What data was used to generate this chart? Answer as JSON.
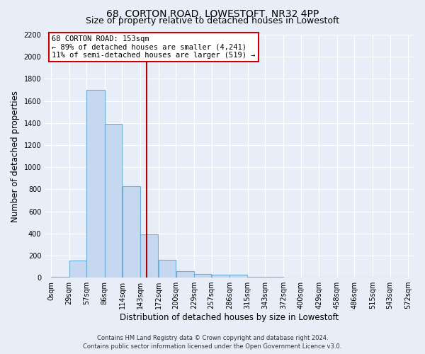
{
  "title": "68, CORTON ROAD, LOWESTOFT, NR32 4PP",
  "subtitle": "Size of property relative to detached houses in Lowestoft",
  "xlabel": "Distribution of detached houses by size in Lowestoft",
  "ylabel": "Number of detached properties",
  "bin_edges": [
    0,
    29,
    57,
    86,
    114,
    143,
    172,
    200,
    229,
    257,
    286,
    315,
    343,
    372,
    400,
    429,
    458,
    486,
    515,
    543,
    572
  ],
  "bin_labels": [
    "0sqm",
    "29sqm",
    "57sqm",
    "86sqm",
    "114sqm",
    "143sqm",
    "172sqm",
    "200sqm",
    "229sqm",
    "257sqm",
    "286sqm",
    "315sqm",
    "343sqm",
    "372sqm",
    "400sqm",
    "429sqm",
    "458sqm",
    "486sqm",
    "515sqm",
    "543sqm",
    "572sqm"
  ],
  "counts": [
    10,
    155,
    1700,
    1390,
    830,
    390,
    160,
    60,
    35,
    25,
    25,
    10,
    5,
    0,
    0,
    0,
    0,
    0,
    0,
    0
  ],
  "bar_color": "#c5d8f0",
  "bar_edge_color": "#6baed6",
  "vline_color": "#aa0000",
  "vline_x": 153,
  "annotation_title": "68 CORTON ROAD: 153sqm",
  "annotation_line1": "← 89% of detached houses are smaller (4,241)",
  "annotation_line2": "11% of semi-detached houses are larger (519) →",
  "annotation_box_color": "#ffffff",
  "annotation_box_edge": "#cc0000",
  "ylim": [
    0,
    2200
  ],
  "yticks": [
    0,
    200,
    400,
    600,
    800,
    1000,
    1200,
    1400,
    1600,
    1800,
    2000,
    2200
  ],
  "footer1": "Contains HM Land Registry data © Crown copyright and database right 2024.",
  "footer2": "Contains public sector information licensed under the Open Government Licence v3.0.",
  "bg_color": "#e8eef8",
  "plot_bg_color": "#e8eef8",
  "grid_color": "#ffffff",
  "title_fontsize": 10,
  "subtitle_fontsize": 9,
  "axis_label_fontsize": 8.5,
  "tick_fontsize": 7,
  "annotation_fontsize": 7.5,
  "footer_fontsize": 6
}
